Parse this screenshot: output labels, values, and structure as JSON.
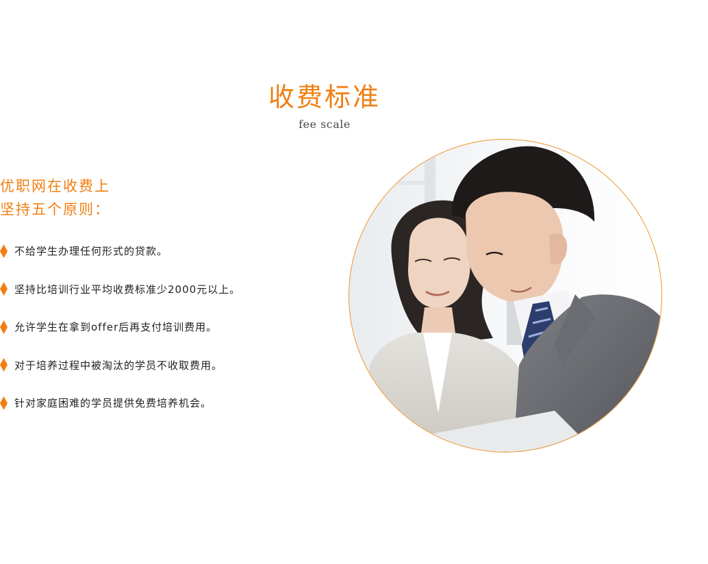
{
  "section": {
    "title": "收费标准",
    "subtitle": "fee scale"
  },
  "intro": {
    "line1": "优职网在收费上",
    "line2": "坚持五个原则："
  },
  "principles": [
    "不给学生办理任何形式的贷款。",
    "坚持比培训行业平均收费标准少2000元以上。",
    "允许学生在拿到offer后再支付培训费用。",
    "对于培养过程中被淘汰的学员不收取费用。",
    "针对家庭困难的学员提供免费培养机会。"
  ],
  "colors": {
    "accent": "#f07f13",
    "text": "#222222",
    "circle_border": "#f08a1c"
  },
  "icons": {
    "bullet": "diamond-bullet-icon"
  }
}
